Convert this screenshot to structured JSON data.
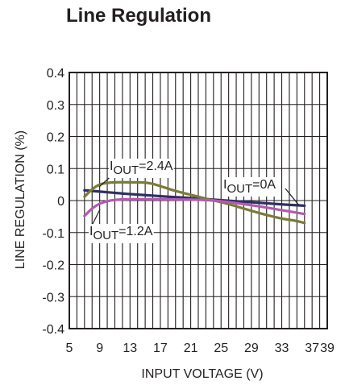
{
  "chart_data": {
    "type": "line",
    "title": "Line Regulation",
    "xlabel": "INPUT VOLTAGE (V)",
    "ylabel": "LINE REGULATION (%)",
    "xlim": [
      5,
      39
    ],
    "ylim": [
      -0.4,
      0.4
    ],
    "x_ticks": [
      5,
      9,
      13,
      17,
      21,
      25,
      29,
      33,
      37,
      39
    ],
    "x_tick_labels": [
      "5",
      "9",
      "13",
      "17",
      "21",
      "25",
      "29",
      "33",
      "37",
      "39"
    ],
    "y_ticks": [
      0.4,
      0.3,
      0.2,
      0.1,
      0,
      -0.1,
      -0.2,
      -0.3,
      -0.4
    ],
    "y_tick_labels": [
      "0.4",
      "0.3",
      "0.2",
      "0.1",
      "0",
      "-0.1",
      "-0.2",
      "-0.3",
      "-0.4"
    ],
    "grid": true,
    "series": [
      {
        "name": "IOUT=0A",
        "color": "#2e3064",
        "x": [
          7,
          9,
          12,
          15,
          18,
          21,
          24,
          27,
          30,
          33,
          36
        ],
        "y": [
          0.032,
          0.028,
          0.022,
          0.017,
          0.012,
          0.008,
          0.003,
          -0.002,
          -0.007,
          -0.012,
          -0.016
        ]
      },
      {
        "name": "IOUT=2.4A",
        "color": "#7c7b36",
        "x": [
          7,
          8,
          9,
          10,
          11,
          13,
          15,
          16,
          17,
          19,
          21,
          23,
          25,
          27,
          29,
          31,
          33,
          35,
          36
        ],
        "y": [
          0.012,
          0.035,
          0.05,
          0.055,
          0.057,
          0.057,
          0.056,
          0.052,
          0.045,
          0.03,
          0.018,
          0.006,
          -0.005,
          -0.018,
          -0.032,
          -0.045,
          -0.056,
          -0.064,
          -0.07
        ]
      },
      {
        "name": "IOUT=1.2A",
        "color": "#b25ab0",
        "x": [
          7,
          8,
          9,
          10,
          11,
          13,
          17,
          21,
          24,
          27,
          30,
          33,
          36
        ],
        "y": [
          -0.048,
          -0.025,
          -0.01,
          -0.002,
          0.002,
          0.004,
          0.004,
          0.003,
          0.0,
          -0.008,
          -0.018,
          -0.03,
          -0.042
        ]
      }
    ],
    "annotations": [
      {
        "series": "IOUT=2.4A",
        "base": "I",
        "sub": "OUT",
        "rest": "=2.4A"
      },
      {
        "series": "IOUT=0A",
        "base": "I",
        "sub": "OUT",
        "rest": "=0A"
      },
      {
        "series": "IOUT=1.2A",
        "base": "I",
        "sub": "OUT",
        "rest": "=1.2A"
      }
    ]
  }
}
